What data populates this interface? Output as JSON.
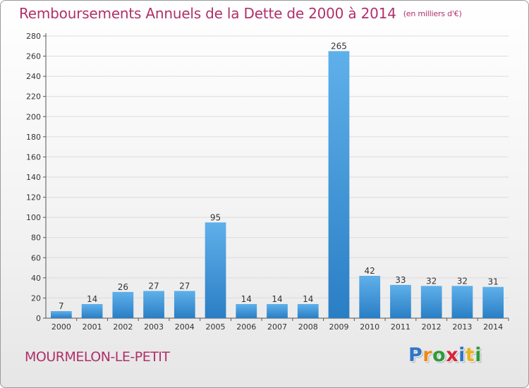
{
  "title": "Remboursements Annuels de la Dette de 2000 à 2014",
  "unit": "(en milliers d'€)",
  "commune": "MOURMELON-LE-PETIT",
  "logo": {
    "letters": [
      "P",
      "r",
      "o",
      "x",
      "i",
      "t",
      "i"
    ],
    "colors": [
      "#2e75c8",
      "#e88a1a",
      "#2e9a3a",
      "#d6253a",
      "#2e75c8",
      "#e8b21a",
      "#2e9a3a"
    ]
  },
  "colors": {
    "title": "#b0306a",
    "bar_light": "#5fb0ea",
    "bar_dark": "#2a7ec4",
    "grid": "#dcdcdc"
  },
  "chart_data": {
    "type": "bar",
    "categories": [
      "2000",
      "2001",
      "2002",
      "2003",
      "2004",
      "2005",
      "2006",
      "2007",
      "2008",
      "2009",
      "2010",
      "2011",
      "2012",
      "2013",
      "2014"
    ],
    "values": [
      7,
      14,
      26,
      27,
      27,
      95,
      14,
      14,
      14,
      265,
      42,
      33,
      32,
      32,
      31
    ],
    "ylim": [
      0,
      280
    ],
    "yticks": [
      0,
      20,
      40,
      60,
      80,
      100,
      120,
      140,
      160,
      180,
      200,
      220,
      240,
      260,
      280
    ],
    "grid": true,
    "legend": "none"
  }
}
